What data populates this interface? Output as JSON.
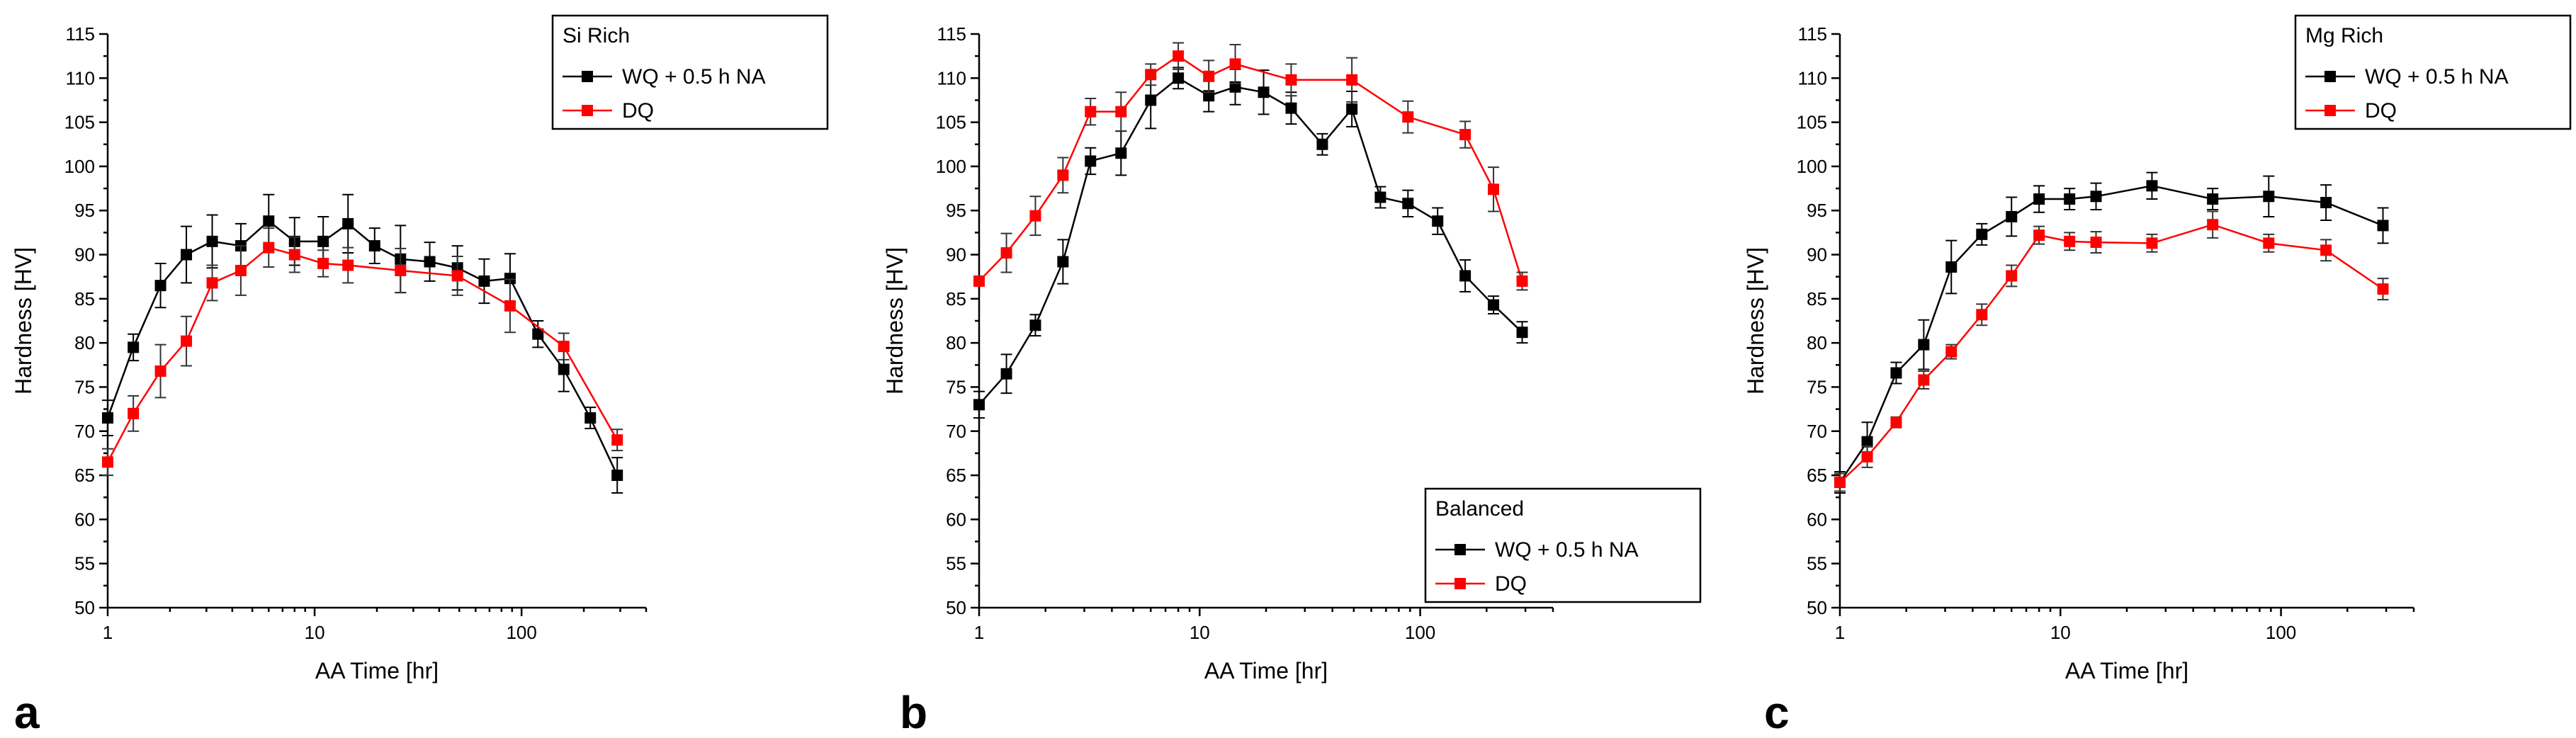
{
  "colors": {
    "wq": "#000000",
    "dq": "#ff0000"
  },
  "chart_data": [
    {
      "type": "line",
      "panel": "a",
      "legend_title": "Si Rich",
      "legend_position": "top-right",
      "xlabel": "AA Time [hr]",
      "ylabel": "Hardness [HV]",
      "xscale": "log",
      "xlim": [
        1,
        400
      ],
      "ylim": [
        50,
        115
      ],
      "xticks": [
        1,
        10,
        100
      ],
      "xtick_labels": [
        "1",
        "10",
        "100"
      ],
      "yticks": [
        50,
        55,
        60,
        65,
        70,
        75,
        80,
        85,
        90,
        95,
        100,
        105,
        110,
        115
      ],
      "ytick_labels": [
        "50",
        "55",
        "60",
        "65",
        "70",
        "75",
        "80",
        "85",
        "90",
        "95",
        "100",
        "105",
        "110",
        "115"
      ],
      "series": [
        {
          "name": "WQ + 0.5 h NA",
          "color": "#000000",
          "x": [
            1,
            1.33,
            1.8,
            2.4,
            3.2,
            4.4,
            6,
            8,
            11,
            14.5,
            19.5,
            26,
            36,
            49,
            66,
            88,
            120,
            160,
            215,
            290
          ],
          "y": [
            71.5,
            79.5,
            86.5,
            90,
            91.5,
            91,
            93.8,
            91.5,
            91.5,
            93.5,
            91,
            89.5,
            89.2,
            88.5,
            87,
            87.3,
            81,
            77,
            71.5,
            65
          ],
          "err": [
            2,
            1.5,
            2.5,
            3.2,
            3,
            2.5,
            3,
            2.7,
            2.8,
            3.3,
            2,
            3.8,
            2.2,
            2.5,
            2.5,
            2.8,
            1.5,
            2.5,
            1.2,
            2
          ]
        },
        {
          "name": "DQ",
          "color": "#ff0000",
          "x": [
            1,
            1.33,
            1.8,
            2.4,
            3.2,
            4.4,
            6,
            8,
            11,
            14.5,
            26,
            49,
            88,
            160,
            290
          ],
          "y": [
            66.5,
            72,
            76.8,
            80.2,
            86.8,
            88.2,
            90.8,
            90,
            89,
            88.8,
            88.2,
            87.6,
            84.2,
            79.6,
            69
          ],
          "err": [
            1.5,
            2,
            3,
            2.8,
            2,
            2.8,
            2.2,
            2,
            1.5,
            2,
            2.5,
            2.2,
            3,
            1.5,
            1.2
          ]
        }
      ]
    },
    {
      "type": "line",
      "panel": "b",
      "legend_title": "Balanced",
      "legend_position": "bottom-right",
      "xlabel": "AA Time [hr]",
      "ylabel": "Hardness [HV]",
      "xscale": "log",
      "xlim": [
        1,
        400
      ],
      "ylim": [
        50,
        115
      ],
      "xticks": [
        1,
        10,
        100
      ],
      "xtick_labels": [
        "1",
        "10",
        "100"
      ],
      "yticks": [
        50,
        55,
        60,
        65,
        70,
        75,
        80,
        85,
        90,
        95,
        100,
        105,
        110,
        115
      ],
      "ytick_labels": [
        "50",
        "55",
        "60",
        "65",
        "70",
        "75",
        "80",
        "85",
        "90",
        "95",
        "100",
        "105",
        "110",
        "115"
      ],
      "series": [
        {
          "name": "WQ + 0.5 h NA",
          "color": "#000000",
          "x": [
            1,
            1.33,
            1.8,
            2.4,
            3.2,
            4.4,
            6,
            8,
            11,
            14.5,
            19.5,
            26,
            36,
            49,
            66,
            88,
            120,
            160,
            215,
            290
          ],
          "y": [
            73,
            76.5,
            82,
            89.2,
            100.6,
            101.5,
            107.5,
            110,
            108,
            109,
            108.4,
            106.6,
            102.5,
            106.5,
            96.5,
            95.8,
            93.8,
            87.6,
            84.3,
            81.2
          ],
          "err": [
            1.5,
            2.2,
            1.2,
            2.5,
            1.5,
            2.5,
            3.2,
            1.2,
            1.8,
            2,
            2.5,
            1.8,
            1.2,
            2,
            1.2,
            1.5,
            1.5,
            1.8,
            1,
            1.2
          ]
        },
        {
          "name": "DQ",
          "color": "#ff0000",
          "x": [
            1,
            1.33,
            1.8,
            2.4,
            3.2,
            4.4,
            6,
            8,
            11,
            14.5,
            26,
            49,
            88,
            160,
            215,
            290
          ],
          "y": [
            87,
            90.2,
            94.4,
            99,
            106.2,
            106.2,
            110.4,
            112.5,
            110.2,
            111.6,
            109.8,
            109.8,
            105.6,
            103.6,
            97.4,
            87
          ],
          "err": [
            0.5,
            2.2,
            2.2,
            2,
            1.5,
            2.2,
            1.2,
            1.5,
            1.8,
            2.2,
            1.8,
            2.5,
            1.8,
            1.5,
            2.5,
            1
          ]
        }
      ]
    },
    {
      "type": "line",
      "panel": "c",
      "legend_title": "Mg Rich",
      "legend_position": "top-right",
      "xlabel": "AA Time [hr]",
      "ylabel": "Hardness [HV]",
      "xscale": "log",
      "xlim": [
        1,
        400
      ],
      "ylim": [
        50,
        115
      ],
      "xticks": [
        1,
        10,
        100
      ],
      "xtick_labels": [
        "1",
        "10",
        "100"
      ],
      "yticks": [
        50,
        55,
        60,
        65,
        70,
        75,
        80,
        85,
        90,
        95,
        100,
        105,
        110,
        115
      ],
      "ytick_labels": [
        "50",
        "55",
        "60",
        "65",
        "70",
        "75",
        "80",
        "85",
        "90",
        "95",
        "100",
        "105",
        "110",
        "115"
      ],
      "series": [
        {
          "name": "WQ + 0.5 h NA",
          "color": "#000000",
          "x": [
            1,
            1.33,
            1.8,
            2.4,
            3.2,
            4.4,
            6,
            8,
            11,
            14.5,
            26,
            49,
            88,
            160,
            290
          ],
          "y": [
            64.2,
            68.8,
            76.6,
            79.8,
            88.6,
            92.3,
            94.3,
            96.3,
            96.3,
            96.6,
            97.8,
            96.3,
            96.6,
            95.9,
            93.3
          ],
          "err": [
            1.2,
            2.2,
            1.2,
            2.8,
            3,
            1.2,
            2.2,
            1.5,
            1.2,
            1.5,
            1.5,
            1.2,
            2.3,
            2,
            2
          ]
        },
        {
          "name": "DQ",
          "color": "#ff0000",
          "x": [
            1,
            1.33,
            1.8,
            2.4,
            3.2,
            4.4,
            6,
            8,
            11,
            14.5,
            26,
            49,
            88,
            160,
            290
          ],
          "y": [
            64.2,
            67.1,
            71,
            75.8,
            79,
            83.2,
            87.6,
            92.2,
            91.5,
            91.4,
            91.3,
            93.4,
            91.3,
            90.5,
            86.1
          ],
          "err": [
            1,
            1.2,
            0.6,
            1,
            0.8,
            1.2,
            1.2,
            1,
            1,
            1.2,
            1,
            1.5,
            1,
            1.2,
            1.2
          ]
        }
      ]
    }
  ]
}
